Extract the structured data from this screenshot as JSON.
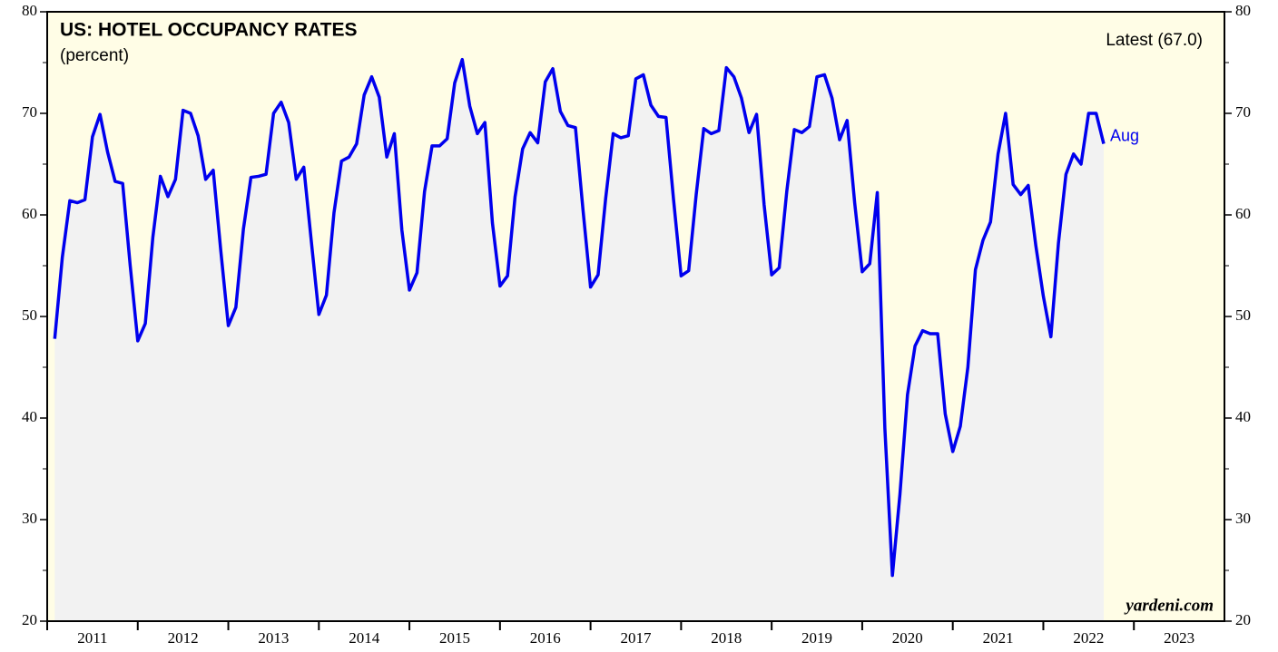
{
  "chart_data": {
    "type": "line",
    "title": "US: HOTEL OCCUPANCY RATES",
    "subtitle": "(percent)",
    "annotation": "Latest (67.0)",
    "end_label": "Aug",
    "source": "yardeni.com",
    "x": [
      "2011-01",
      "2011-02",
      "2011-03",
      "2011-04",
      "2011-05",
      "2011-06",
      "2011-07",
      "2011-08",
      "2011-09",
      "2011-10",
      "2011-11",
      "2011-12",
      "2012-01",
      "2012-02",
      "2012-03",
      "2012-04",
      "2012-05",
      "2012-06",
      "2012-07",
      "2012-08",
      "2012-09",
      "2012-10",
      "2012-11",
      "2012-12",
      "2013-01",
      "2013-02",
      "2013-03",
      "2013-04",
      "2013-05",
      "2013-06",
      "2013-07",
      "2013-08",
      "2013-09",
      "2013-10",
      "2013-11",
      "2013-12",
      "2014-01",
      "2014-02",
      "2014-03",
      "2014-04",
      "2014-05",
      "2014-06",
      "2014-07",
      "2014-08",
      "2014-09",
      "2014-10",
      "2014-11",
      "2014-12",
      "2015-01",
      "2015-02",
      "2015-03",
      "2015-04",
      "2015-05",
      "2015-06",
      "2015-07",
      "2015-08",
      "2015-09",
      "2015-10",
      "2015-11",
      "2015-12",
      "2016-01",
      "2016-02",
      "2016-03",
      "2016-04",
      "2016-05",
      "2016-06",
      "2016-07",
      "2016-08",
      "2016-09",
      "2016-10",
      "2016-11",
      "2016-12",
      "2017-01",
      "2017-02",
      "2017-03",
      "2017-04",
      "2017-05",
      "2017-06",
      "2017-07",
      "2017-08",
      "2017-09",
      "2017-10",
      "2017-11",
      "2017-12",
      "2018-01",
      "2018-02",
      "2018-03",
      "2018-04",
      "2018-05",
      "2018-06",
      "2018-07",
      "2018-08",
      "2018-09",
      "2018-10",
      "2018-11",
      "2018-12",
      "2019-01",
      "2019-02",
      "2019-03",
      "2019-04",
      "2019-05",
      "2019-06",
      "2019-07",
      "2019-08",
      "2019-09",
      "2019-10",
      "2019-11",
      "2019-12",
      "2020-01",
      "2020-02",
      "2020-03",
      "2020-04",
      "2020-05",
      "2020-06",
      "2020-07",
      "2020-08",
      "2020-09",
      "2020-10",
      "2020-11",
      "2020-12",
      "2021-01",
      "2021-02",
      "2021-03",
      "2021-04",
      "2021-05",
      "2021-06",
      "2021-07",
      "2021-08",
      "2021-09",
      "2021-10",
      "2021-11",
      "2021-12",
      "2022-01",
      "2022-02",
      "2022-03",
      "2022-04",
      "2022-05",
      "2022-06",
      "2022-07",
      "2022-08"
    ],
    "series": [
      {
        "name": "Hotel occupancy rate",
        "color": "#0000ee",
        "values": [
          47.8,
          55.8,
          61.4,
          61.2,
          61.5,
          67.7,
          69.9,
          66.2,
          63.3,
          63.1,
          55.0,
          47.6,
          49.3,
          57.8,
          63.8,
          61.8,
          63.5,
          70.3,
          70.0,
          67.8,
          63.5,
          64.4,
          56.5,
          49.1,
          50.9,
          58.6,
          63.7,
          63.8,
          64.0,
          70.0,
          71.1,
          69.1,
          63.5,
          64.7,
          57.4,
          50.2,
          52.1,
          60.2,
          65.3,
          65.7,
          67.0,
          71.8,
          73.6,
          71.6,
          65.7,
          68.0,
          58.5,
          52.6,
          54.3,
          62.3,
          66.8,
          66.8,
          67.5,
          73.0,
          75.3,
          70.7,
          68.0,
          69.1,
          59.2,
          53.0,
          54.0,
          61.8,
          66.5,
          68.1,
          67.1,
          73.1,
          74.4,
          70.2,
          68.8,
          68.6,
          60.5,
          52.9,
          54.1,
          61.6,
          68.0,
          67.6,
          67.8,
          73.4,
          73.8,
          70.8,
          69.7,
          69.6,
          61.5,
          54.0,
          54.5,
          62.0,
          68.5,
          68.0,
          68.3,
          74.5,
          73.6,
          71.5,
          68.1,
          69.9,
          61.0,
          54.1,
          54.8,
          62.3,
          68.4,
          68.1,
          68.7,
          73.6,
          73.8,
          71.5,
          67.4,
          69.3,
          61.2,
          54.4,
          55.2,
          62.2,
          39.0,
          24.5,
          32.5,
          42.3,
          47.1,
          48.6,
          48.3,
          48.3,
          40.4,
          36.7,
          39.2,
          45.0,
          54.6,
          57.5,
          59.3,
          66.0,
          70.0,
          63.0,
          62.0,
          62.9,
          57.0,
          52.0,
          48.0,
          57.2,
          64.0,
          66.0,
          65.0,
          70.0,
          70.0,
          67.0
        ]
      }
    ],
    "years": [
      2011,
      2012,
      2013,
      2014,
      2015,
      2016,
      2017,
      2018,
      2019,
      2020,
      2021,
      2022,
      2023
    ],
    "xlim": [
      2011,
      2024
    ],
    "ylim": [
      20,
      80
    ],
    "yticks": [
      20,
      30,
      40,
      50,
      60,
      70,
      80
    ],
    "yticks_minor": [
      25,
      35,
      45,
      55,
      65,
      75
    ],
    "background": "#fffde6",
    "area_color": "#f2f2f2"
  }
}
